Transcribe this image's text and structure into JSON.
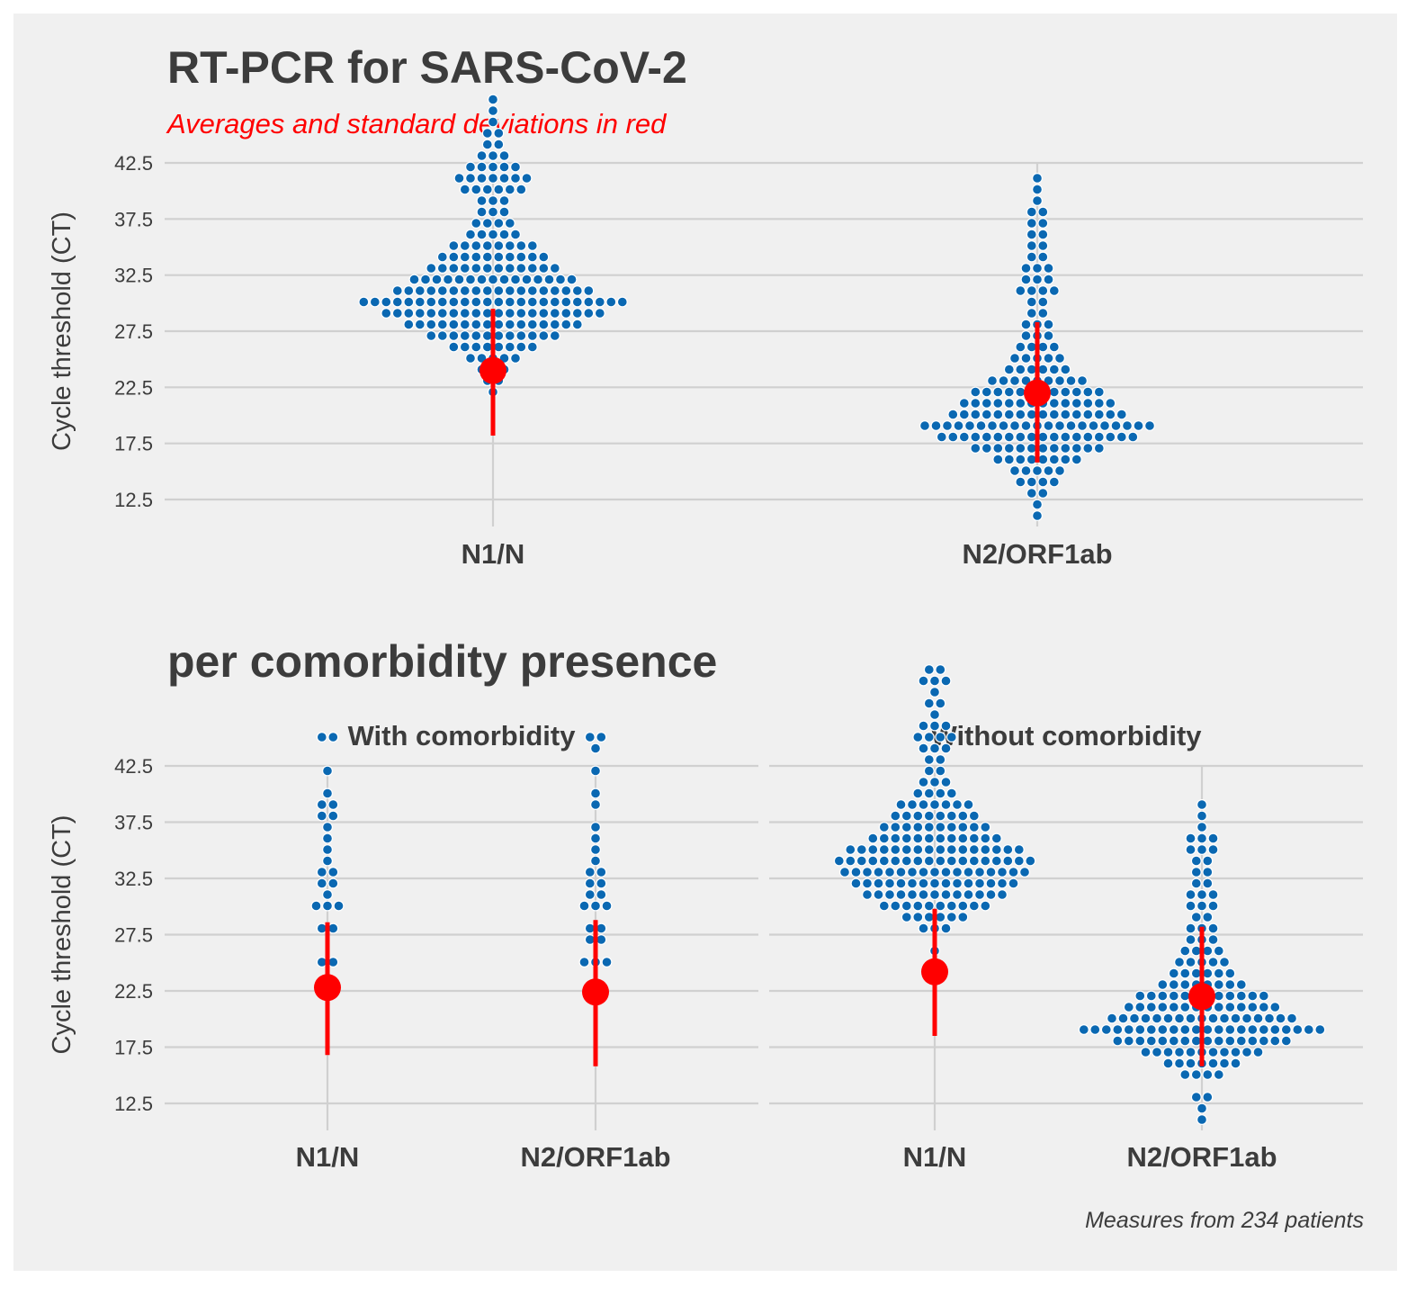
{
  "page": {
    "title": "RT-PCR for SARS-CoV-2",
    "subtitle": "Averages and standard deviations in red",
    "section_title": "per comorbidity presence",
    "caption": "Measures from 234 patients"
  },
  "colors": {
    "background": "#f0f0f0",
    "grid": "#d0d0d0",
    "dot": "#0a68b2",
    "dot_outline": "#ffffff",
    "summary": "#ff0000",
    "text": "#3c3c3c"
  },
  "chart_data": [
    {
      "type": "dotplot",
      "ylabel": "Cycle threshold (CT)",
      "yticks": [
        "42.5",
        "37.5",
        "32.5",
        "27.5",
        "22.5",
        "17.5",
        "12.5"
      ],
      "ylim": [
        11,
        43
      ],
      "categories": [
        "N1/N",
        "N2/ORF1ab"
      ],
      "summary": [
        {
          "category": "N1/N",
          "mean": 24.0,
          "sd_low": 18.2,
          "sd_high": 29.5
        },
        {
          "category": "N2/ORF1ab",
          "mean": 22.0,
          "sd_low": 15.8,
          "sd_high": 28.3
        }
      ]
    },
    {
      "type": "dotplot",
      "ylabel": "Cycle threshold (CT)",
      "yticks": [
        "42.5",
        "37.5",
        "32.5",
        "27.5",
        "22.5",
        "17.5",
        "12.5"
      ],
      "ylim": [
        11,
        43
      ],
      "facets": [
        {
          "name": "With comorbidity",
          "categories": [
            "N1/N",
            "N2/ORF1ab"
          ],
          "summary": [
            {
              "category": "N1/N",
              "mean": 22.8,
              "sd_low": 16.8,
              "sd_high": 28.6
            },
            {
              "category": "N2/ORF1ab",
              "mean": 22.4,
              "sd_low": 15.8,
              "sd_high": 28.8
            }
          ]
        },
        {
          "name": "Without comorbidity",
          "categories": [
            "N1/N",
            "N2/ORF1ab"
          ],
          "summary": [
            {
              "category": "N1/N",
              "mean": 24.2,
              "sd_low": 18.5,
              "sd_high": 29.8
            },
            {
              "category": "N2/ORF1ab",
              "mean": 22.0,
              "sd_low": 15.8,
              "sd_high": 28.2
            }
          ]
        }
      ]
    }
  ]
}
